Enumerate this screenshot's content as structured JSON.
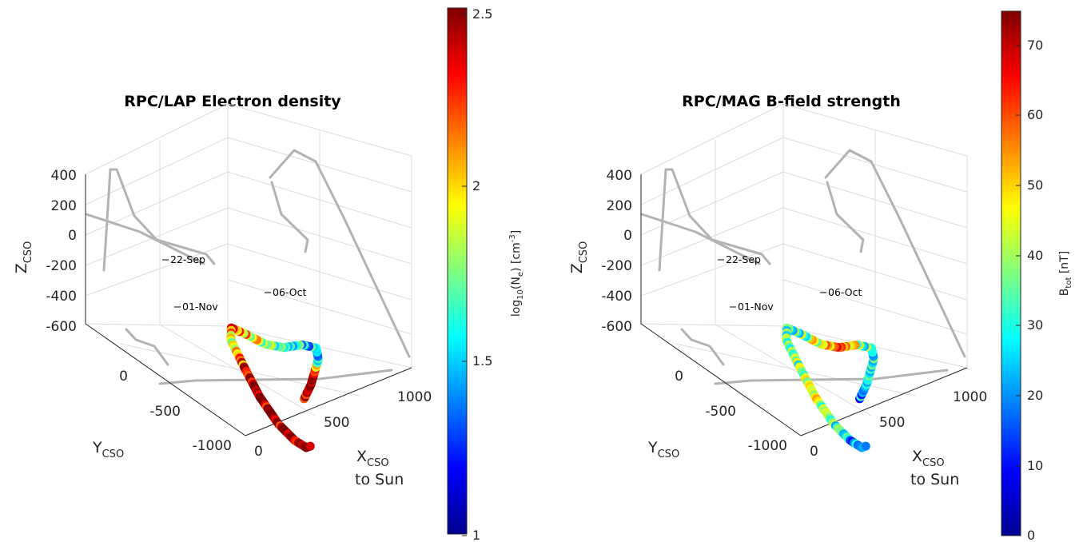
{
  "chart_data": [
    {
      "type": "scatter",
      "projection": "3d",
      "title": "RPC/LAP Electron density",
      "axes": {
        "x": {
          "label": "X",
          "label_subscript": "CSO",
          "label_line2": "to Sun",
          "ticks": [
            "0",
            "500",
            "1000"
          ],
          "range": [
            0,
            1100
          ]
        },
        "y": {
          "label": "Y",
          "label_subscript": "CSO",
          "ticks": [
            "0",
            "-500",
            "-1000"
          ],
          "range": [
            -1100,
            200
          ]
        },
        "z": {
          "label": "Z",
          "label_subscript": "CSO",
          "ticks": [
            "400",
            "200",
            "0",
            "-200",
            "-400",
            "-600"
          ],
          "range": [
            -600,
            400
          ]
        }
      },
      "grid": true,
      "colorbar": {
        "label_parts": {
          "pre": "log",
          "sub1": "10",
          "mid": "(N",
          "sub2": "e",
          "mid2": ") [cm",
          "sup": "-3",
          "post": "]"
        },
        "range": [
          1,
          2.5
        ],
        "ticks": [
          "1",
          "1.5",
          "2",
          "2.5"
        ],
        "colormap": "jet"
      },
      "annotations": [
        {
          "text": "22-Sep",
          "x": 580,
          "y": -520,
          "z": -110
        },
        {
          "text": "06-Oct",
          "x": 900,
          "y": -90,
          "z": -220
        },
        {
          "text": "01-Nov",
          "x": 560,
          "y": -590,
          "z": -360
        }
      ],
      "trajectory": {
        "x": [
          580,
          720,
          840,
          960,
          1050,
          1010,
          900,
          780,
          650,
          510,
          380,
          330,
          360,
          420,
          480,
          530,
          560
        ],
        "y": [
          -520,
          -430,
          -340,
          -250,
          -150,
          -100,
          -90,
          -90,
          -90,
          -130,
          -250,
          -380,
          -450,
          -510,
          -555,
          -580,
          -590
        ],
        "z": [
          -110,
          -140,
          -170,
          -200,
          -240,
          -240,
          -220,
          -150,
          -30,
          100,
          160,
          100,
          -60,
          -220,
          -320,
          -370,
          -360
        ]
      },
      "values": [
        2.45,
        2.4,
        2.35,
        1.6,
        1.5,
        1.55,
        1.65,
        1.8,
        2.0,
        2.2,
        1.7,
        2.3,
        2.4,
        2.45,
        2.45,
        2.45,
        2.4
      ]
    },
    {
      "type": "scatter",
      "projection": "3d",
      "title": "RPC/MAG B-field strength",
      "axes": {
        "x": {
          "label": "X",
          "label_subscript": "CSO",
          "label_line2": "to Sun",
          "ticks": [
            "0",
            "500",
            "1000"
          ],
          "range": [
            0,
            1100
          ]
        },
        "y": {
          "label": "Y",
          "label_subscript": "CSO",
          "ticks": [
            "0",
            "-500",
            "-1000"
          ],
          "range": [
            -1100,
            200
          ]
        },
        "z": {
          "label": "Z",
          "label_subscript": "CSO",
          "ticks": [
            "400",
            "200",
            "0",
            "-200",
            "-400",
            "-600"
          ],
          "range": [
            -600,
            400
          ]
        }
      },
      "grid": true,
      "colorbar": {
        "label_parts": {
          "pre": "B",
          "sub1": "tot",
          "mid": " [nT]",
          "sub2": "",
          "mid2": "",
          "sup": "",
          "post": ""
        },
        "range": [
          0,
          75
        ],
        "ticks": [
          "0",
          "10",
          "20",
          "30",
          "40",
          "50",
          "60",
          "70"
        ],
        "colormap": "jet"
      },
      "annotations": [
        {
          "text": "22-Sep",
          "x": 580,
          "y": -520,
          "z": -110
        },
        {
          "text": "06-Oct",
          "x": 900,
          "y": -90,
          "z": -220
        },
        {
          "text": "01-Nov",
          "x": 560,
          "y": -590,
          "z": -360
        }
      ],
      "trajectory": {
        "x": [
          580,
          720,
          840,
          960,
          1050,
          1010,
          900,
          780,
          650,
          510,
          380,
          330,
          360,
          420,
          480,
          530,
          560
        ],
        "y": [
          -520,
          -430,
          -340,
          -250,
          -150,
          -100,
          -90,
          -90,
          -90,
          -130,
          -250,
          -380,
          -450,
          -510,
          -555,
          -580,
          -590
        ],
        "z": [
          -110,
          -140,
          -170,
          -200,
          -240,
          -240,
          -220,
          -150,
          -30,
          100,
          160,
          100,
          -60,
          -220,
          -320,
          -370,
          -360
        ]
      },
      "values": [
        22,
        20,
        30,
        35,
        28,
        42,
        64,
        48,
        35,
        28,
        30,
        38,
        42,
        35,
        22,
        18,
        22
      ]
    }
  ]
}
